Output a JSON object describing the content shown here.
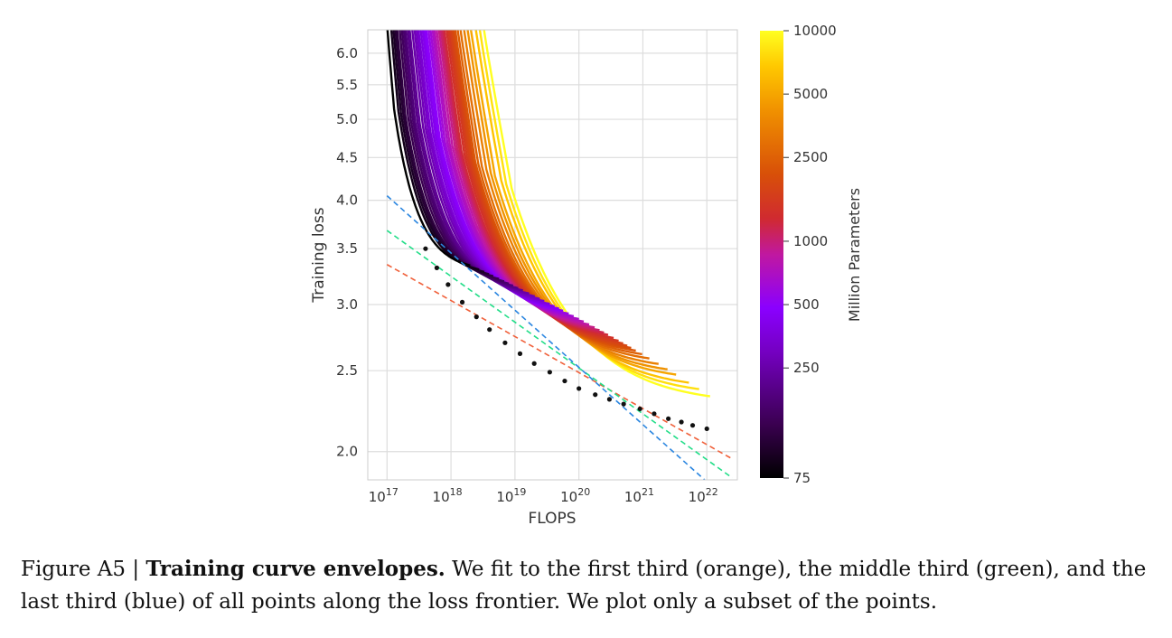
{
  "chart_data": {
    "type": "line",
    "xlabel": "FLOPS",
    "ylabel": "Training loss",
    "x_scale": "log",
    "y_scale": "log",
    "xlim": [
      5e+16,
      3e+22
    ],
    "ylim": [
      1.85,
      6.4
    ],
    "xtick_labels": [
      {
        "base": "10",
        "exp": "17",
        "value": 1e+17
      },
      {
        "base": "10",
        "exp": "18",
        "value": 1e+18
      },
      {
        "base": "10",
        "exp": "19",
        "value": 1e+19
      },
      {
        "base": "10",
        "exp": "20",
        "value": 1e+20
      },
      {
        "base": "10",
        "exp": "21",
        "value": 1e+21
      },
      {
        "base": "10",
        "exp": "22",
        "value": 1e+22
      }
    ],
    "yticks": [
      "2.0",
      "2.5",
      "3.0",
      "3.5",
      "4.0",
      "4.5",
      "5.0",
      "5.5",
      "6.0"
    ],
    "grid": true,
    "colorbar": {
      "label": "Million Parameters",
      "scale": "log",
      "ticks": [
        "75",
        "250",
        "500",
        "1000",
        "2500",
        "5000",
        "10000"
      ],
      "colormap": "gnuplot",
      "range": [
        75,
        10000
      ]
    },
    "envelope_fits": [
      {
        "color": "#f0603a",
        "style": "dashed",
        "points": [
          [
            1e+17,
            3.35
          ],
          [
            2.5e+22,
            1.96
          ]
        ]
      },
      {
        "color": "#22dd88",
        "style": "dashed",
        "points": [
          [
            1e+17,
            3.68
          ],
          [
            2.5e+22,
            1.86
          ]
        ]
      },
      {
        "color": "#2b86e0",
        "style": "dashed",
        "points": [
          [
            1e+17,
            4.05
          ],
          [
            1e+22,
            1.84
          ]
        ]
      }
    ],
    "frontier_points": [
      [
        4e+17,
        3.5
      ],
      [
        6e+17,
        3.32
      ],
      [
        9e+17,
        3.17
      ],
      [
        1.5e+18,
        3.02
      ],
      [
        2.5e+18,
        2.9
      ],
      [
        4e+18,
        2.8
      ],
      [
        7e+18,
        2.7
      ],
      [
        1.2e+19,
        2.62
      ],
      [
        2e+19,
        2.55
      ],
      [
        3.5e+19,
        2.49
      ],
      [
        6e+19,
        2.43
      ],
      [
        1e+20,
        2.38
      ],
      [
        1.8e+20,
        2.34
      ],
      [
        3e+20,
        2.31
      ],
      [
        5e+20,
        2.28
      ],
      [
        9e+20,
        2.25
      ],
      [
        1.5e+21,
        2.22
      ],
      [
        2.5e+21,
        2.19
      ],
      [
        4e+21,
        2.17
      ],
      [
        6e+21,
        2.15
      ],
      [
        1e+22,
        2.13
      ]
    ],
    "training_curves": {
      "model_sizes_million_params": [
        75,
        90,
        100,
        110,
        120,
        135,
        150,
        165,
        180,
        200,
        220,
        250,
        280,
        310,
        340,
        380,
        420,
        460,
        500,
        560,
        620,
        690,
        760,
        850,
        950,
        1050,
        1150,
        1250,
        1400,
        1550,
        1700,
        1850,
        2000,
        2200,
        2500,
        2900,
        3500,
        4200,
        5000,
        6500,
        8000,
        10000
      ]
    }
  },
  "caption": {
    "prefix": "Figure A5 | ",
    "title": "Training curve envelopes.",
    "text": " We fit to the first third (orange), the middle third (green), and the last third (blue) of all points along the loss frontier. We plot only a subset of the points."
  }
}
